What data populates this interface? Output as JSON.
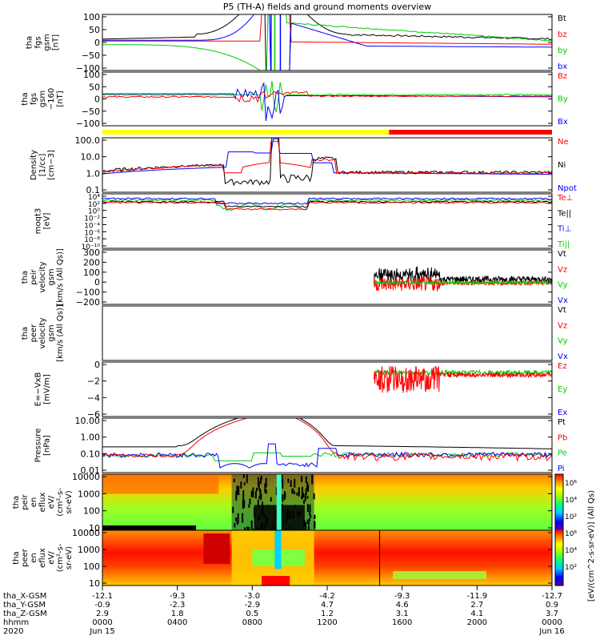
{
  "chart_data": {
    "type": "line",
    "title": "P5 (TH-A) fields and ground moments overview",
    "panels": [
      {
        "ylabel": [
          "tha",
          "fgs",
          "gsm",
          "[nT]"
        ],
        "yticks": [
          "100",
          "50",
          "0",
          "−50",
          "−100"
        ],
        "legend": [
          {
            "name": "Bt",
            "color": "#000000"
          },
          {
            "name": "bz",
            "color": "#ff0000"
          },
          {
            "name": "by",
            "color": "#00cc00"
          },
          {
            "name": "bx",
            "color": "#0000ff"
          }
        ]
      },
      {
        "ylabel": [
          "tha",
          "fgs",
          "gsm",
          "−160",
          "[nT]"
        ],
        "yticks": [
          "100",
          "50",
          "0",
          "−50",
          "−100"
        ],
        "legend": [
          {
            "name": "Bz",
            "color": "#ff0000"
          },
          {
            "name": "By",
            "color": "#00cc00"
          },
          {
            "name": "Bx",
            "color": "#0000ff"
          }
        ]
      },
      {
        "ylabel": [
          "Density",
          "[1/cc]",
          "[cm−3]"
        ],
        "yticks": [
          "100.0",
          "10.0",
          "1.0",
          "0.1"
        ],
        "legend": [
          {
            "name": "Ne",
            "color": "#ff0000"
          },
          {
            "name": "Ni",
            "color": "#000000"
          },
          {
            "name": "Npot",
            "color": "#0000ff"
          }
        ]
      },
      {
        "ylabel": [
          "moqt3",
          "[eV]"
        ],
        "yticks": [
          "10⁴",
          "10²",
          "10⁰",
          "10⁻²",
          "10⁻⁴",
          "10⁻⁶",
          "10⁻⁸",
          "10⁻¹⁰"
        ],
        "legend": [
          {
            "name": "Te⊥",
            "color": "#ff0000"
          },
          {
            "name": "Te||",
            "color": "#000000"
          },
          {
            "name": "Ti⊥",
            "color": "#0000ff"
          },
          {
            "name": "Ti||",
            "color": "#00cc00"
          }
        ]
      },
      {
        "ylabel": [
          "tha",
          "peir",
          "velocity",
          "gsm",
          "[km/s (All Qs)]"
        ],
        "yticks": [
          "300",
          "200",
          "100",
          "0",
          "−100",
          "−200"
        ],
        "legend": [
          {
            "name": "Vt",
            "color": "#000000"
          },
          {
            "name": "Vz",
            "color": "#ff0000"
          },
          {
            "name": "Vy",
            "color": "#00cc00"
          },
          {
            "name": "Vx",
            "color": "#0000ff"
          }
        ]
      },
      {
        "ylabel": [
          "tha",
          "peer",
          "velocity",
          "gsm",
          "[km/s (All Qs)]"
        ],
        "yticks": [],
        "legend": [
          {
            "name": "Vt",
            "color": "#000000"
          },
          {
            "name": "Vz",
            "color": "#ff0000"
          },
          {
            "name": "Vy",
            "color": "#00cc00"
          },
          {
            "name": "Vx",
            "color": "#0000ff"
          }
        ]
      },
      {
        "ylabel": [
          "E=−VxB",
          "[mV/m]"
        ],
        "yticks": [
          "0",
          "−2",
          "−4",
          "−6"
        ],
        "legend": [
          {
            "name": "Ez",
            "color": "#ff0000"
          },
          {
            "name": "Ey",
            "color": "#00cc00"
          },
          {
            "name": "Ex",
            "color": "#0000ff"
          }
        ]
      },
      {
        "ylabel": [
          "Pressure",
          "[nPa]"
        ],
        "yticks": [
          "10.00",
          "1.00",
          "0.10",
          "0.01"
        ],
        "legend": [
          {
            "name": "Pt",
            "color": "#000000"
          },
          {
            "name": "Pb",
            "color": "#ff0000"
          },
          {
            "name": "Pe",
            "color": "#00cc00"
          },
          {
            "name": "Pi",
            "color": "#0000ff"
          }
        ]
      },
      {
        "ylabel": [
          "tha",
          "peir",
          "en",
          "eflux",
          "eV/",
          "(cm²-s-",
          "sr-eV)"
        ],
        "yticks": [
          "10000",
          "1000",
          "100",
          "10"
        ],
        "legend": []
      },
      {
        "ylabel": [
          "tha",
          "peer",
          "en",
          "eflux",
          "eV/",
          "(cm²-s-",
          "sr-eV)"
        ],
        "yticks": [
          "10000",
          "1000",
          "100",
          "10"
        ],
        "legend": []
      }
    ],
    "colorbar": {
      "label": "[eV/(cm^2-s-sr-eV)] (All Qs)",
      "ticks": [
        "10⁶",
        "10⁴",
        "10²",
        "10⁶",
        "10⁴",
        "10²"
      ]
    },
    "xaxis": {
      "rows": [
        {
          "label": "tha_X-GSM",
          "values": [
            "-12.1",
            "-9.3",
            "-3.0",
            "-4.2",
            "-9.3",
            "-11.9",
            "-12.7"
          ]
        },
        {
          "label": "tha_Y-GSM",
          "values": [
            "-0.9",
            "-2.3",
            "-2.9",
            "4.7",
            "4.6",
            "2.7",
            "0.9"
          ]
        },
        {
          "label": "tha_Z-GSM",
          "values": [
            "2.9",
            "1.8",
            "0.5",
            "1.2",
            "3.1",
            "4.1",
            "3.7"
          ]
        },
        {
          "label": "hhmm",
          "values": [
            "0000",
            "0400",
            "0800",
            "1200",
            "1600",
            "2000",
            "0000"
          ]
        },
        {
          "label": "2020",
          "values": [
            "Jun 15",
            "",
            "",
            "",
            "",
            "",
            "Jun 16"
          ]
        }
      ],
      "hours": [
        0,
        4,
        8,
        12,
        16,
        20,
        24
      ]
    },
    "bar_mode": [
      {
        "start": 0,
        "end": 15.3,
        "color": "#ffff00"
      },
      {
        "start": 15.3,
        "end": 24,
        "color": "#ff0000"
      }
    ]
  }
}
